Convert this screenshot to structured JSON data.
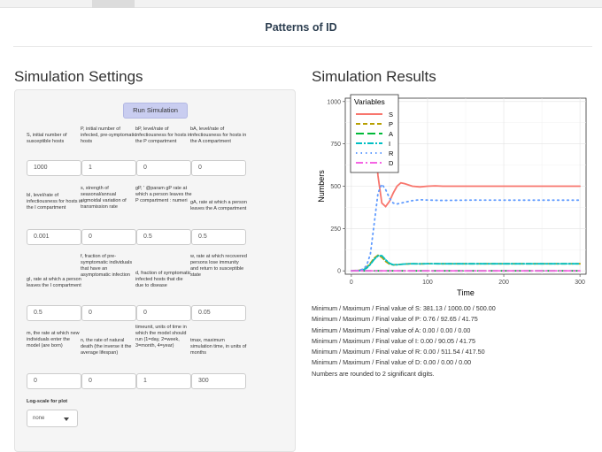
{
  "header": {
    "title": "Patterns of ID"
  },
  "settings": {
    "title": "Simulation Settings",
    "run_label": "Run Simulation",
    "params": [
      {
        "label": "S, initial number of susceptible hosts",
        "value": "1000"
      },
      {
        "label": "P, initial number of infected, pre-symptomatic hosts",
        "value": "1"
      },
      {
        "label": "bP, level/rate of infectiousness for hosts in the P compartment",
        "value": "0"
      },
      {
        "label": "bA, level/rate of infectiousness for hosts in the A compartment",
        "value": "0"
      },
      {
        "label": "bI, level/rate of infectiousness for hosts in the I compartment",
        "value": "0.001"
      },
      {
        "label": "s, strength of seasonal/annual sigmoidal variation of transmission rate",
        "value": "0"
      },
      {
        "label": "gP, ' @param gP rate at which a person leaves the P compartment : numeri",
        "value": "0.5"
      },
      {
        "label": "gA, rate at which a person leaves the A compartment",
        "value": "0.5"
      },
      {
        "label": "gI, rate at which a person leaves the I compartment",
        "value": "0.5"
      },
      {
        "label": "f, fraction of pre-symptomatic individuals that have an asymptomatic infection",
        "value": "0"
      },
      {
        "label": "d, fraction of symptomatic infected hosts that die due to disease",
        "value": "0"
      },
      {
        "label": "w, rate at which recovered persons lose immunity and return to susceptible state",
        "value": "0.05"
      },
      {
        "label": "m, the rate at which new individuals enter the model (are born)",
        "value": "0"
      },
      {
        "label": "n, the rate of natural death (the inverse it the average lifespan)",
        "value": "0"
      },
      {
        "label": "timeunit, units of time in which the model should run (1=day, 2=week, 3=month, 4=year)",
        "value": "1"
      },
      {
        "label": "tmax, maximum simulation time, in units of months",
        "value": "300"
      }
    ],
    "log_label": "Log-scale for plot",
    "log_value": "none"
  },
  "results": {
    "title": "Simulation Results",
    "lines": [
      "Minimum / Maximum / Final value of S: 381.13 / 1000.00 / 500.00",
      "Minimum / Maximum / Final value of P: 0.76 / 92.65 / 41.75",
      "Minimum / Maximum / Final value of A: 0.00 / 0.00 / 0.00",
      "Minimum / Maximum / Final value of I: 0.00 / 90.05 / 41.75",
      "Minimum / Maximum / Final value of R: 0.00 / 511.54 / 417.50",
      "Minimum / Maximum / Final value of D: 0.00 / 0.00 / 0.00",
      "Numbers are rounded to 2 significant digits."
    ]
  },
  "chart_data": {
    "type": "line",
    "xlabel": "Time",
    "ylabel": "Numbers",
    "xlim": [
      -8,
      308
    ],
    "ylim": [
      -20,
      1020
    ],
    "xticks": [
      0,
      100,
      200,
      300
    ],
    "yticks": [
      0,
      250,
      500,
      750,
      1000
    ],
    "grid": true,
    "legend": {
      "title": "Variables",
      "position": "top-left"
    },
    "series": [
      {
        "name": "S",
        "color": "#f8766d",
        "dash": "solid",
        "x": [
          0,
          5,
          10,
          15,
          20,
          25,
          30,
          35,
          40,
          45,
          50,
          55,
          60,
          65,
          70,
          80,
          90,
          100,
          110,
          120,
          140,
          160,
          200,
          250,
          300
        ],
        "y": [
          1000,
          999,
          997,
          990,
          970,
          920,
          800,
          560,
          400,
          380,
          410,
          460,
          500,
          520,
          515,
          500,
          496,
          500,
          502,
          500,
          500,
          500,
          500,
          500,
          500
        ]
      },
      {
        "name": "P",
        "color": "#b79f00",
        "dash": "5,3",
        "x": [
          0,
          10,
          15,
          20,
          25,
          30,
          35,
          40,
          45,
          50,
          55,
          60,
          70,
          80,
          90,
          100,
          120,
          150,
          200,
          300
        ],
        "y": [
          1,
          3,
          8,
          20,
          45,
          75,
          92,
          80,
          55,
          40,
          35,
          37,
          40,
          42,
          41,
          42,
          41.8,
          41.7,
          41.75,
          41.75
        ]
      },
      {
        "name": "A",
        "color": "#00ba38",
        "dash": "9,4",
        "x": [
          0,
          300
        ],
        "y": [
          0,
          0
        ]
      },
      {
        "name": "I",
        "color": "#00bfc4",
        "dash": "7,2,2,2",
        "x": [
          0,
          10,
          15,
          20,
          25,
          30,
          35,
          40,
          45,
          50,
          55,
          60,
          70,
          80,
          90,
          100,
          120,
          150,
          200,
          300
        ],
        "y": [
          0,
          1,
          5,
          15,
          38,
          68,
          88,
          90,
          65,
          45,
          36,
          36,
          40,
          42,
          41,
          42,
          41.8,
          41.7,
          41.75,
          41.75
        ]
      },
      {
        "name": "R",
        "color": "#619cff",
        "dash": "1.5,4",
        "x": [
          0,
          10,
          15,
          20,
          25,
          30,
          35,
          40,
          45,
          50,
          55,
          60,
          70,
          80,
          90,
          100,
          120,
          140,
          160,
          200,
          250,
          300
        ],
        "y": [
          0,
          3,
          10,
          30,
          100,
          280,
          460,
          512,
          480,
          430,
          400,
          395,
          405,
          415,
          420,
          418,
          416,
          417,
          418,
          417.5,
          417.5,
          417.5
        ]
      },
      {
        "name": "D",
        "color": "#f564e3",
        "dash": "8,3,2,3",
        "x": [
          0,
          300
        ],
        "y": [
          0,
          0
        ]
      }
    ]
  }
}
